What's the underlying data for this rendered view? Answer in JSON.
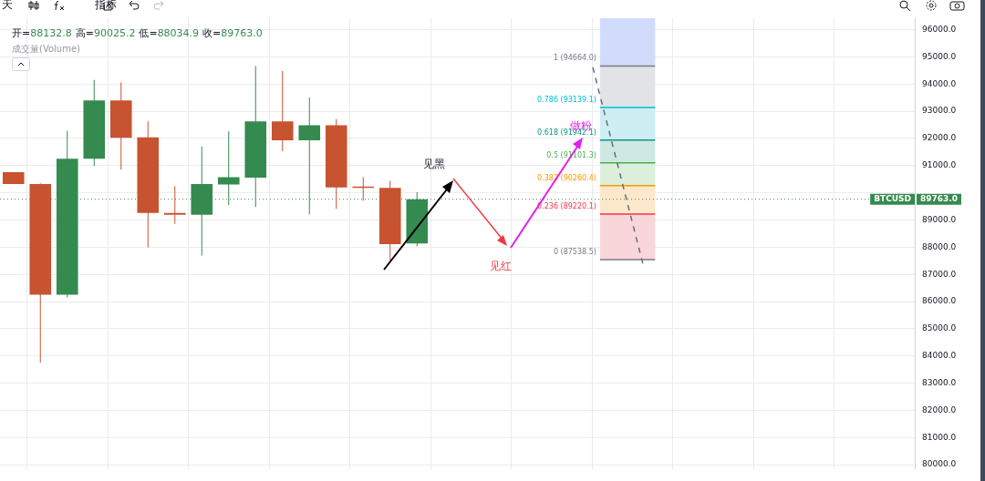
{
  "chart_data": {
    "type": "candlestick",
    "title": "开=88132.8 高=90025.2 低=88034.9 收=89763.0",
    "subtitle": "成交量(Volume)",
    "categories": [
      null,
      null,
      null,
      null,
      null,
      null,
      null,
      null,
      null,
      null,
      null,
      null,
      null,
      null,
      null,
      null,
      null,
      null,
      null,
      null,
      null,
      null,
      null,
      null,
      null,
      null,
      null,
      null,
      null,
      null,
      null,
      null,
      null,
      null
    ],
    "ohlc": [
      [
        90760,
        90760,
        90320,
        90320
      ],
      [
        90320,
        90350,
        83750,
        86250
      ],
      [
        86250,
        92280,
        86150,
        91250
      ],
      [
        91250,
        94150,
        90980,
        93400
      ],
      [
        93400,
        94060,
        90850,
        92020
      ],
      [
        92040,
        92630,
        87990,
        89260
      ],
      [
        89260,
        90240,
        88860,
        89190
      ],
      [
        89190,
        91700,
        87690,
        90320
      ],
      [
        90310,
        92260,
        89550,
        90570
      ],
      [
        90560,
        94660,
        89480,
        92630
      ],
      [
        92630,
        94480,
        91530,
        91930
      ],
      [
        91930,
        93510,
        89210,
        92480
      ],
      [
        92480,
        92710,
        89410,
        90200
      ],
      [
        90200,
        90580,
        89710,
        90180
      ],
      [
        90180,
        90440,
        87520,
        88110
      ],
      [
        88132.8,
        90025.2,
        88034.9,
        89763.0
      ],
      null,
      null,
      null,
      null,
      null,
      null,
      null,
      null,
      null,
      null,
      null,
      null,
      null,
      null,
      null,
      null,
      null,
      null
    ],
    "colors": [
      "#c75331",
      "#c75331",
      "#358a4f",
      "#358a4f",
      "#c75331",
      "#c75331",
      "#c75331",
      "#358a4f",
      "#358a4f",
      "#358a4f",
      "#c75331",
      "#358a4f",
      "#c75331",
      "#c75331",
      "#c75331",
      "#358a4f",
      null,
      null,
      null,
      null,
      null,
      null,
      null,
      null,
      null,
      null,
      null,
      null,
      null,
      null,
      null,
      null,
      null,
      null
    ],
    "ylim": [
      79850,
      96420
    ],
    "yticks": [
      {
        "value": 80000,
        "label": "80000.0"
      },
      {
        "value": 81000,
        "label": "81000.0"
      },
      {
        "value": 82000,
        "label": "82000.0"
      },
      {
        "value": 83000,
        "label": "83000.0"
      },
      {
        "value": 84000,
        "label": "84000.0"
      },
      {
        "value": 85000,
        "label": "85000.0"
      },
      {
        "value": 86000,
        "label": "86000.0"
      },
      {
        "value": 87000,
        "label": "87000.0"
      },
      {
        "value": 88000,
        "label": "88000.0"
      },
      {
        "value": 89000,
        "label": "89000.0"
      },
      {
        "value": 90000,
        "label": null
      },
      {
        "value": 91000,
        "label": "91000.0"
      },
      {
        "value": 92000,
        "label": "92000.0"
      },
      {
        "value": 93000,
        "label": "93000.0"
      },
      {
        "value": 94000,
        "label": "94000.0"
      },
      {
        "value": 95000,
        "label": "95000.0"
      },
      {
        "value": 96000,
        "label": "96000.0"
      }
    ],
    "tick_labels": "y",
    "grid": true,
    "legend": false,
    "ref_lines": [
      {
        "axis": "y",
        "value": 94664.0,
        "label": "1 (94664.0)",
        "color": "#787b86",
        "line_style": "solid"
      },
      {
        "axis": "y",
        "value": 93139.1,
        "label": "0.786 (93139.1)",
        "color": "#00bcd4",
        "line_style": "solid"
      },
      {
        "axis": "y",
        "value": 91942.1,
        "label": "0.618 (91942.1)",
        "color": "#089981",
        "line_style": "solid"
      },
      {
        "axis": "y",
        "value": 91101.3,
        "label": "0.5 (91101.3)",
        "color": "#4caf50",
        "line_style": "solid"
      },
      {
        "axis": "y",
        "value": 90260.4,
        "label": "0.382 (90260.4)",
        "color": "#ff9800",
        "line_style": "solid"
      },
      {
        "axis": "y",
        "value": 89220.1,
        "label": "0.236 (89220.1)",
        "color": "#f23645",
        "line_style": "solid"
      },
      {
        "axis": "y",
        "value": 87538.5,
        "label": "0 (87538.5)",
        "color": "#787b86",
        "line_style": "solid"
      },
      {
        "axis": "y",
        "value": 89763.0,
        "label": "BTCUSD 89763.0",
        "color": "#358a4f",
        "line_style": "dotted"
      }
    ],
    "bands": [
      {
        "axis": "y",
        "from": 94664.0,
        "to": 96420,
        "color": "#d1dcfc"
      },
      {
        "axis": "y",
        "from": 93139.1,
        "to": 94664.0,
        "color": "#e2e3e6"
      },
      {
        "axis": "y",
        "from": 91942.1,
        "to": 93139.1,
        "color": "#cdeef3"
      },
      {
        "axis": "y",
        "from": 91101.3,
        "to": 91942.1,
        "color": "#cfe8e1"
      },
      {
        "axis": "y",
        "from": 90260.4,
        "to": 91101.3,
        "color": "#dcefdb"
      },
      {
        "axis": "y",
        "from": 89220.1,
        "to": 90260.4,
        "color": "#fde8cc"
      },
      {
        "axis": "y",
        "from": 87538.5,
        "to": 89220.1,
        "color": "#f9d6da"
      }
    ],
    "annotations": [
      "天",
      "指标",
      "见黑",
      "见红",
      "做粉"
    ]
  }
}
